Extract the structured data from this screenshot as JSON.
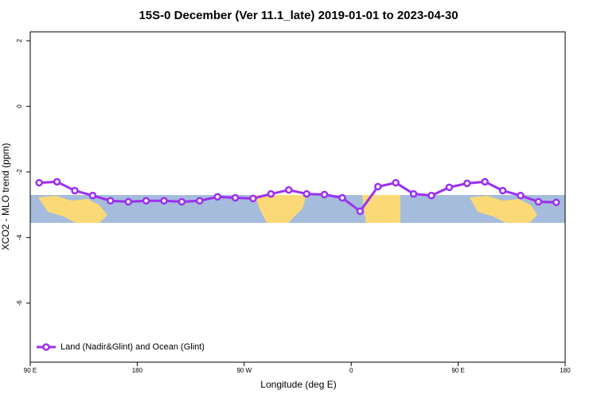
{
  "chart_data": {
    "type": "line",
    "title": "15S-0 December (Ver 11.1_late)   2019-01-01 to 2023-04-30",
    "x_label": "Longitude (deg E)",
    "y_label": "XCO2 - MLO trend (ppm)",
    "x": [
      97.5,
      112.5,
      127.5,
      142.5,
      157.5,
      172.5,
      187.5,
      202.5,
      217.5,
      232.5,
      247.5,
      262.5,
      277.5,
      292.5,
      307.5,
      322.5,
      337.5,
      352.5,
      367.5,
      382.5,
      397.5,
      412.5,
      427.5,
      442.5,
      457.5,
      472.5,
      487.5,
      502.5,
      517.5,
      532.5
    ],
    "series": [
      {
        "name": "Land (Nadir&Glint) and Ocean (Glint)",
        "color": "#9b30f0",
        "values": [
          -2.33,
          -2.3,
          -2.57,
          -2.72,
          -2.88,
          -2.91,
          -2.88,
          -2.88,
          -2.91,
          -2.88,
          -2.76,
          -2.79,
          -2.81,
          -2.67,
          -2.55,
          -2.67,
          -2.69,
          -2.79,
          -3.2,
          -2.45,
          -2.33,
          -2.67,
          -2.72,
          -2.47,
          -2.35,
          -2.3,
          -2.57,
          -2.72,
          -2.91,
          -2.93
        ]
      }
    ],
    "xlim": [
      90,
      540
    ],
    "xticks": [
      {
        "value": 90,
        "label": "90 E"
      },
      180,
      {
        "value": 270,
        "label": "90 W"
      },
      {
        "value": 360,
        "label": "0"
      },
      {
        "value": 450,
        "label": "90 E"
      },
      {
        "value": 540,
        "label": "180"
      }
    ],
    "ylim": [
      -7.8,
      2.27
    ],
    "yticks": [
      2,
      0,
      -2,
      -4,
      -6
    ],
    "legend": "bottomleft"
  }
}
